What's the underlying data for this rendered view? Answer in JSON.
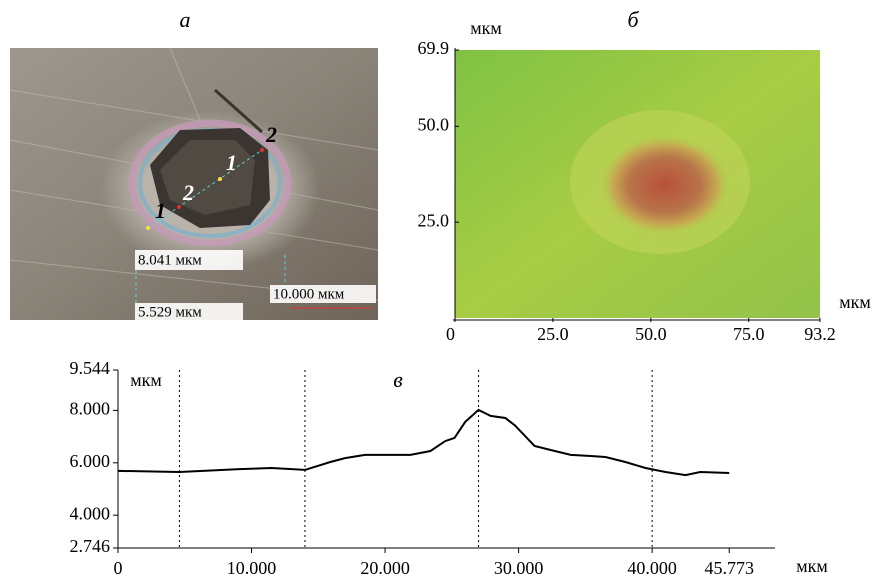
{
  "figure_a": {
    "title": "а",
    "annotations": [
      "8.041 мкм",
      "5.529 мкм",
      "10.000 мкм"
    ],
    "point_labels": [
      "1",
      "2",
      "1",
      "2"
    ]
  },
  "chart_data": [
    {
      "type": "image",
      "title": "б",
      "x_label": "мкм",
      "y_label": "мкм",
      "xlim": [
        0,
        93.2
      ],
      "ylim": [
        0,
        69.9
      ],
      "xticks": [
        0,
        {
          "value": 25,
          "label": "25.0"
        },
        {
          "value": 50,
          "label": "50.0"
        },
        {
          "value": 75,
          "label": "75.0"
        },
        93.2
      ],
      "yticks": [
        {
          "value": 25,
          "label": "25.0"
        },
        {
          "value": 50,
          "label": "50.0"
        },
        69.9
      ]
    },
    {
      "type": "line",
      "title": "в",
      "x_label": "мкм",
      "y_label": "мкм",
      "color": "#000000",
      "x": [
        0,
        4.6,
        9.1,
        11.5,
        14.0,
        15.9,
        17.0,
        18.5,
        21.9,
        23.4,
        24.5,
        25.2,
        26.0,
        27.0,
        27.9,
        29.0,
        29.7,
        31.2,
        32.4,
        33.9,
        35.4,
        36.5,
        38.0,
        39.5,
        41.0,
        42.5,
        43.6,
        45.773
      ],
      "values": [
        5.69,
        5.65,
        5.76,
        5.8,
        5.73,
        6.03,
        6.18,
        6.3,
        6.3,
        6.45,
        6.83,
        6.95,
        7.56,
        8.02,
        7.79,
        7.71,
        7.44,
        6.64,
        6.49,
        6.3,
        6.26,
        6.22,
        6.03,
        5.8,
        5.65,
        5.53,
        5.65,
        5.61
      ],
      "vlines": [
        4.6,
        14.0,
        27.0,
        40.0
      ],
      "xlim": [
        0,
        49.2
      ],
      "ylim": [
        2.746,
        9.544
      ],
      "xticks": [
        0,
        {
          "value": 10,
          "label": "10.000"
        },
        {
          "value": 20,
          "label": "20.000"
        },
        {
          "value": 30,
          "label": "30.000"
        },
        {
          "value": 40,
          "label": "40.000"
        },
        45.773
      ],
      "yticks": [
        2.746,
        {
          "value": 4,
          "label": "4.000"
        },
        {
          "value": 6,
          "label": "6.000"
        },
        {
          "value": 8,
          "label": "8.000"
        },
        9.544
      ]
    }
  ]
}
